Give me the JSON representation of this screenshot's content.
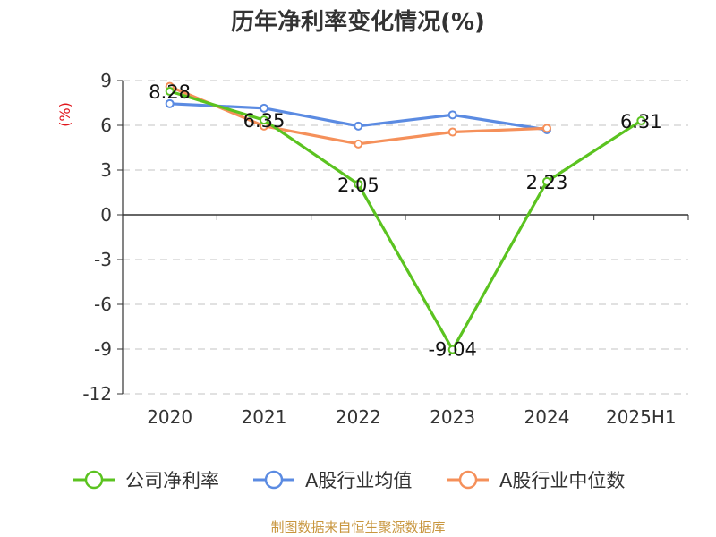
{
  "chart_data": {
    "type": "line",
    "title": "历年净利率变化情况(%)",
    "ylabel": "(%)",
    "ylim": [
      -12,
      9
    ],
    "yticks": [
      9,
      6,
      3,
      0,
      -3,
      -6,
      -9,
      -12
    ],
    "categories": [
      "2020",
      "2021",
      "2022",
      "2023",
      "2024",
      "2025H1"
    ],
    "grid": true,
    "legend_position": "bottom",
    "series": [
      {
        "name": "公司净利率",
        "color": "#5bc320",
        "values": [
          8.28,
          6.35,
          2.05,
          -9.04,
          2.23,
          6.31
        ],
        "labels": [
          "8.28",
          "6.35",
          "2.05",
          "-9.04",
          "2.23",
          "6.31"
        ]
      },
      {
        "name": "A股行业均值",
        "color": "#5b8be2",
        "values": [
          7.45,
          7.15,
          5.95,
          6.7,
          5.7,
          null
        ]
      },
      {
        "name": "A股行业中位数",
        "color": "#f5905a",
        "values": [
          8.6,
          5.95,
          4.75,
          5.55,
          5.8,
          null
        ]
      }
    ]
  },
  "source": "制图数据来自恒生聚源数据库"
}
